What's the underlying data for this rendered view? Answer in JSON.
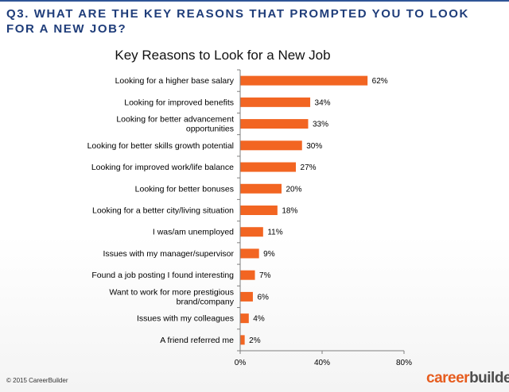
{
  "slide": {
    "question": "Q3. WHAT ARE THE KEY REASONS THAT PROMPTED YOU TO LOOK FOR A NEW JOB?",
    "copyright": "© 2015 CareerBuilder",
    "logo_part1": "career",
    "logo_part2": "builder"
  },
  "colors": {
    "bar": "#f26522",
    "question": "#1f3d7a",
    "logo_orange": "#e65c1e"
  },
  "chart_data": {
    "type": "bar",
    "orientation": "horizontal",
    "title": "Key Reasons to Look for a New Job",
    "categories": [
      [
        "Looking for a higher base salary"
      ],
      [
        "Looking for improved benefits"
      ],
      [
        "Looking for better advancement",
        "opportunities"
      ],
      [
        "Looking for better skills growth potential"
      ],
      [
        "Looking for improved work/life balance"
      ],
      [
        "Looking for better bonuses"
      ],
      [
        "Looking for a better city/living situation"
      ],
      [
        "I was/am unemployed"
      ],
      [
        "Issues with my manager/supervisor"
      ],
      [
        "Found a job posting I found interesting"
      ],
      [
        "Want to work for more prestigious",
        "brand/company"
      ],
      [
        "Issues with my colleagues"
      ],
      [
        "A friend referred me"
      ]
    ],
    "values": [
      62,
      34,
      33,
      30,
      27,
      20,
      18,
      11,
      9,
      7,
      6,
      4,
      2
    ],
    "value_labels": [
      "62%",
      "34%",
      "33%",
      "30%",
      "27%",
      "20%",
      "18%",
      "11%",
      "9%",
      "7%",
      "6%",
      "4%",
      "2%"
    ],
    "xlim": [
      0,
      80
    ],
    "xticks": [
      0,
      40,
      80
    ],
    "xtick_labels": [
      "0%",
      "40%",
      "80%"
    ],
    "grid": false,
    "legend": "none"
  }
}
